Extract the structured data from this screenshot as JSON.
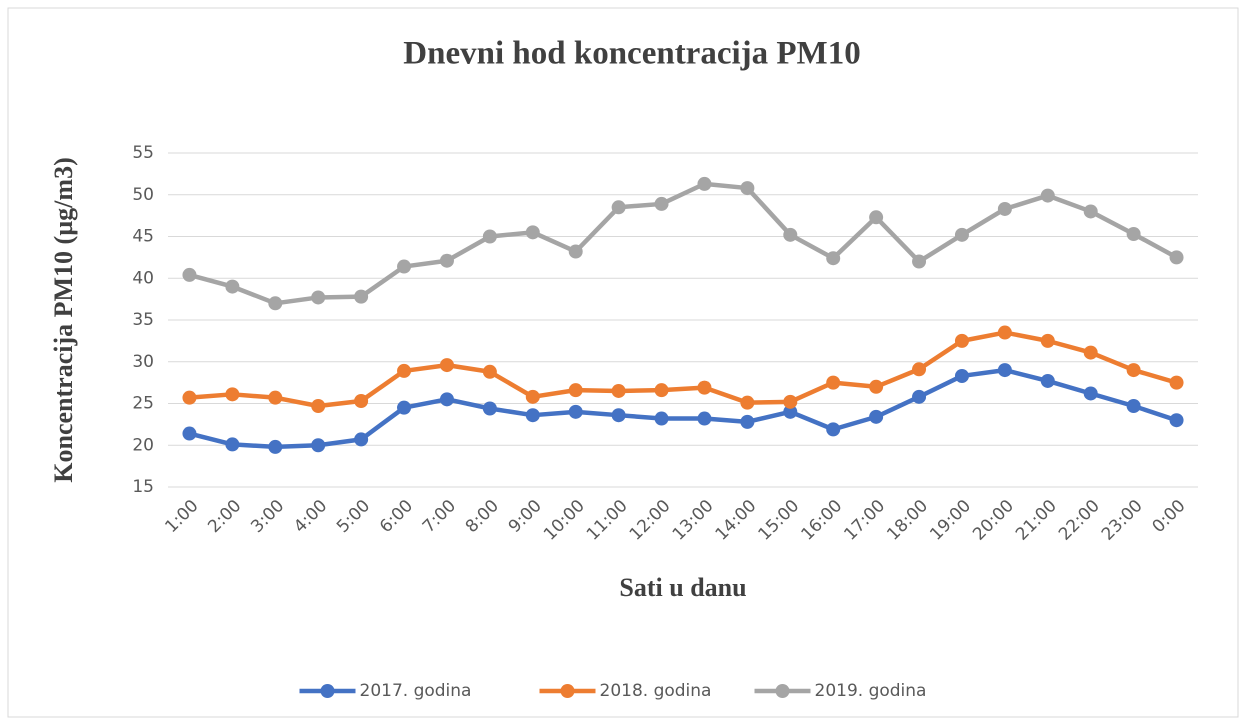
{
  "chart_data": {
    "type": "line",
    "title": "Dnevni hod koncentracija PM10",
    "x_label": "Sati u danu",
    "y_label": "Koncentracija PM10 (µg/m3)",
    "categories": [
      "1:00",
      "2:00",
      "3:00",
      "4:00",
      "5:00",
      "6:00",
      "7:00",
      "8:00",
      "9:00",
      "10:00",
      "11:00",
      "12:00",
      "13:00",
      "14:00",
      "15:00",
      "16:00",
      "17:00",
      "18:00",
      "19:00",
      "20:00",
      "21:00",
      "22:00",
      "23:00",
      "0:00"
    ],
    "series": [
      {
        "name": "2017. godina",
        "color": "#4472c4",
        "values": [
          21.4,
          20.1,
          19.8,
          20.0,
          20.7,
          24.5,
          25.5,
          24.4,
          23.6,
          24.0,
          23.6,
          23.2,
          23.2,
          22.8,
          24.0,
          21.9,
          23.4,
          25.8,
          28.3,
          29.0,
          27.7,
          26.2,
          24.7,
          23.0
        ]
      },
      {
        "name": "2018. godina",
        "color": "#ed7d31",
        "values": [
          25.7,
          26.1,
          25.7,
          24.7,
          25.3,
          28.9,
          29.6,
          28.8,
          25.8,
          26.6,
          26.5,
          26.6,
          26.9,
          25.1,
          25.2,
          27.5,
          27.0,
          29.1,
          32.5,
          33.5,
          32.5,
          31.1,
          29.0,
          27.5
        ]
      },
      {
        "name": "2019. godina",
        "color": "#a5a5a5",
        "values": [
          40.4,
          39.0,
          37.0,
          37.7,
          37.8,
          41.4,
          42.1,
          45.0,
          45.5,
          43.2,
          48.5,
          48.9,
          51.3,
          50.8,
          45.2,
          42.4,
          47.3,
          42.0,
          45.2,
          48.3,
          49.9,
          48.0,
          45.3,
          42.5
        ]
      }
    ],
    "ylim": [
      15,
      55
    ],
    "yticks": [
      15,
      20,
      25,
      30,
      35,
      40,
      45,
      50,
      55
    ],
    "grid": true,
    "legend": "bottom"
  }
}
